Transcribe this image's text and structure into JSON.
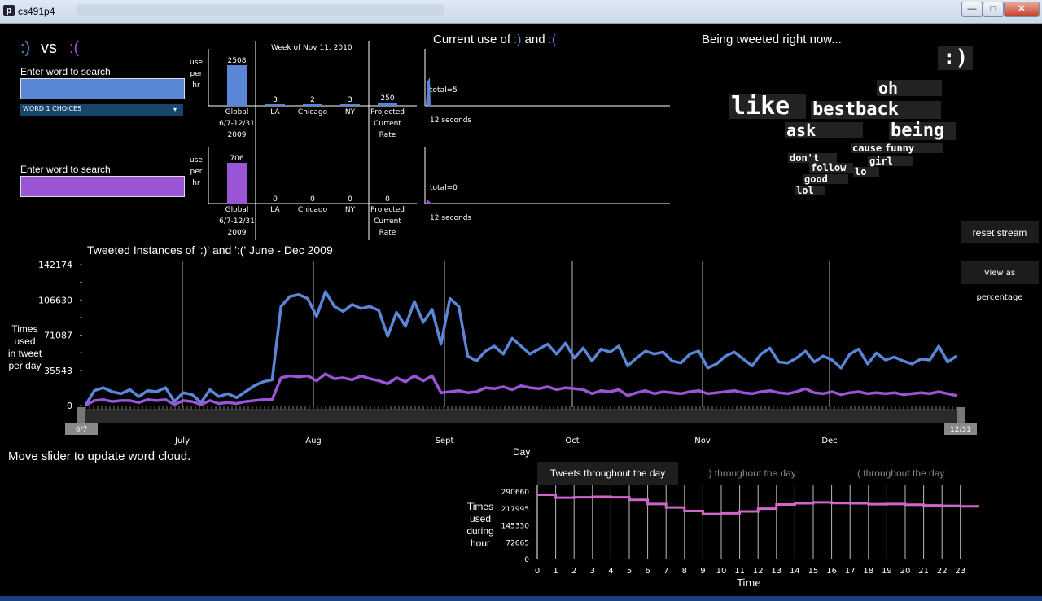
{
  "window": {
    "title": "cs491p4",
    "min": "—",
    "max": "□",
    "close": "✕",
    "app_icon": "p"
  },
  "header": {
    "happy": ":)",
    "vs": "vs",
    "sad": ":("
  },
  "search1": {
    "label": "Enter word to search",
    "value": "",
    "dropdown": "WORD 1 CHOICES"
  },
  "search2": {
    "label": "Enter word to search",
    "value": ""
  },
  "use_label": [
    "use",
    "per",
    "hr"
  ],
  "week_label": "Week of Nov 11, 2010",
  "bars": {
    "categories": [
      "Global",
      "LA",
      "Chicago",
      "NY",
      "Projected"
    ],
    "global_sub": [
      "6/7-12/31",
      "2009"
    ],
    "projected_sub": [
      "Current",
      "Rate"
    ],
    "happy_values": [
      2508,
      3,
      2,
      3,
      250
    ],
    "sad_values": [
      706,
      0,
      0,
      0,
      0
    ]
  },
  "current": {
    "title_pre": "Current use of",
    "happy": ":)",
    "and": "and",
    "sad": ":(",
    "happy_total": "total=5",
    "sad_total": "total=0",
    "seconds1": "12 seconds",
    "seconds2": "12 seconds"
  },
  "tweet": {
    "title": "Being tweeted right now...",
    "face": ":)"
  },
  "cloud": [
    {
      "word": "oh",
      "size": 20
    },
    {
      "word": "like",
      "size": 30
    },
    {
      "word": "bestback",
      "size": 22
    },
    {
      "word": "ask",
      "size": 20
    },
    {
      "word": "being",
      "size": 22
    },
    {
      "word": "cause",
      "size": 12
    },
    {
      "word": "funny",
      "size": 12
    },
    {
      "word": "don't",
      "size": 12
    },
    {
      "word": "girl",
      "size": 12
    },
    {
      "word": "follow",
      "size": 12
    },
    {
      "word": "lo",
      "size": 12
    },
    {
      "word": "good",
      "size": 12
    },
    {
      "word": "lol",
      "size": 12
    }
  ],
  "buttons": {
    "reset": "reset stream",
    "percent": "View as percentage"
  },
  "main_chart": {
    "title": "Tweeted Instances of ':)' and ':('  June - Dec 2009",
    "ylabel": [
      "Times",
      "used",
      "in tweet",
      "per day"
    ],
    "yticks": [
      "142174",
      "106630",
      "71087",
      "35543",
      "0"
    ],
    "months": [
      "July",
      "Aug",
      "Sept",
      "Oct",
      "Nov",
      "Dec"
    ],
    "slider_start": "6/7",
    "slider_end": "12/31",
    "xlabel": "Day",
    "colors": {
      "happy": "#5b86d8",
      "sad": "#9a55d6"
    }
  },
  "hint": "Move slider to update word cloud.",
  "tabs": [
    ":)",
    ":(",
    ""
  ],
  "tab_labels": [
    "Tweets throughout the day",
    ":) throughout the day",
    ":( throughout the day"
  ],
  "chart_data": [
    {
      "type": "line",
      "title": "Tweeted Instances of ':)' and ':('  June - Dec 2009",
      "ylabel": "Times used in tweet per day",
      "xlabel": "Day",
      "ylim": [
        0,
        142174
      ],
      "x_ticks": [
        "July",
        "Aug",
        "Sept",
        "Oct",
        "Nov",
        "Dec"
      ],
      "series": [
        {
          "values": [
            200,
            15000,
            18000,
            14000,
            12000,
            16000,
            9000,
            15000,
            14000,
            18000,
            4000,
            13000,
            11000,
            3000,
            16000,
            9000,
            12000,
            8000,
            14000,
            20000,
            24000,
            26000,
            100000,
            110000,
            112000,
            108000,
            90000,
            115000,
            100000,
            95000,
            102000,
            98000,
            100000,
            96000,
            70000,
            94000,
            80000,
            105000,
            84000,
            97000,
            62000,
            108000,
            100000,
            50000,
            45000,
            55000,
            60000,
            52000,
            68000,
            60000,
            52000,
            57000,
            62000,
            52000,
            63000,
            48000,
            58000,
            45000,
            57000,
            54000,
            60000,
            40000,
            48000,
            55000,
            52000,
            54000,
            45000,
            43000,
            52000,
            55000,
            38000,
            42000,
            50000,
            54000,
            47000,
            40000,
            52000,
            58000,
            44000,
            43000,
            48000,
            55000,
            44000,
            50000,
            46000,
            38000,
            52000,
            57000,
            42000,
            53000,
            46000,
            49000,
            45000,
            42000,
            47000,
            46000,
            60000,
            44000,
            50000
          ]
        },
        {
          "values": [
            100,
            5000,
            6000,
            4000,
            5000,
            5000,
            3000,
            6000,
            5000,
            6000,
            1000,
            5000,
            4000,
            1000,
            5000,
            2000,
            3000,
            2000,
            4000,
            5000,
            6000,
            6000,
            28000,
            30000,
            29000,
            30000,
            25000,
            32000,
            27000,
            28000,
            26000,
            30000,
            27000,
            25000,
            22000,
            28000,
            24000,
            30000,
            25000,
            30000,
            13000,
            14000,
            15000,
            13000,
            14000,
            18000,
            17000,
            19000,
            16000,
            20000,
            18000,
            17000,
            19000,
            16000,
            18000,
            17000,
            16000,
            12000,
            15000,
            14000,
            16000,
            10000,
            13000,
            15000,
            12000,
            14000,
            13000,
            12000,
            14000,
            15000,
            12000,
            13000,
            14000,
            15000,
            13000,
            12000,
            14000,
            15000,
            13000,
            12000,
            14000,
            17000,
            13000,
            12000,
            14000,
            11000,
            13000,
            14000,
            12000,
            13000,
            12000,
            13000,
            11000,
            12000,
            13000,
            12000,
            14000,
            12000,
            10000
          ]
        }
      ]
    },
    {
      "type": "line",
      "title": "Tweets throughout the day",
      "ylabel": "Times used during hour",
      "xlabel": "Time",
      "ylim": [
        0,
        290660
      ],
      "yticks": [
        "290660",
        "217995",
        "145330",
        "72665",
        "0"
      ],
      "x": [
        0,
        1,
        2,
        3,
        4,
        5,
        6,
        7,
        8,
        9,
        10,
        11,
        12,
        13,
        14,
        15,
        16,
        17,
        18,
        19,
        20,
        21,
        22,
        23
      ],
      "series": [
        {
          "values": [
            275000,
            262000,
            264000,
            266000,
            264000,
            253000,
            235000,
            220000,
            205000,
            192000,
            195000,
            203000,
            215000,
            233000,
            238000,
            242000,
            239000,
            238000,
            234000,
            235000,
            232000,
            229000,
            227000,
            225000
          ]
        }
      ]
    }
  ]
}
